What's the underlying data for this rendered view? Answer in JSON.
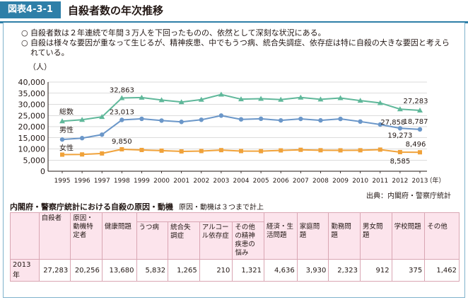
{
  "header": {
    "fig_label": "図表4-3-1",
    "title": "自殺者数の年次推移"
  },
  "notes": [
    {
      "marker": "○",
      "text": "自殺者数は２年連続で年間３万人を下回ったものの、依然として深刻な状況にある。"
    },
    {
      "marker": "○",
      "text": "自殺は様々な要因が重なって生じるが、精神疾患、中でもうつ病、統合失調症、依存症は特に自殺の大きな要因と考えられている。"
    }
  ],
  "chart_data": {
    "type": "line",
    "title": "",
    "ylabel": "（人）",
    "xlabel": "（年）",
    "ylim": [
      0,
      40000
    ],
    "yticks": [
      "0",
      "5,000",
      "10,000",
      "15,000",
      "20,000",
      "25,000",
      "30,000",
      "35,000",
      "40,000"
    ],
    "x": [
      "1995",
      "1996",
      "1997",
      "1998",
      "1999",
      "2000",
      "2001",
      "2002",
      "2003",
      "2004",
      "2005",
      "2006",
      "2007",
      "2008",
      "2009",
      "2010",
      "2011",
      "2012",
      "2013"
    ],
    "grid": true,
    "series": [
      {
        "name": "総数",
        "color": "#5fb89a",
        "marker": "triangle",
        "values": [
          22445,
          23104,
          24391,
          32863,
          33048,
          31957,
          31042,
          32143,
          34427,
          32325,
          32552,
          32155,
          33093,
          32249,
          32845,
          31690,
          30651,
          27858,
          27283
        ]
      },
      {
        "name": "男性",
        "color": "#6b97c9",
        "marker": "circle",
        "values": [
          14231,
          14853,
          16416,
          23013,
          23512,
          22727,
          22144,
          23080,
          24963,
          23272,
          23540,
          22813,
          23478,
          22831,
          23472,
          22283,
          20955,
          19273,
          18787
        ]
      },
      {
        "name": "女性",
        "color": "#f0a23a",
        "marker": "square",
        "values": [
          7445,
          7538,
          7975,
          9850,
          9536,
          9230,
          8898,
          9063,
          9464,
          9053,
          9012,
          9342,
          9615,
          9418,
          9373,
          9407,
          9696,
          8585,
          8496
        ]
      }
    ],
    "annotations": [
      {
        "series": 0,
        "index": 3,
        "text": "32,863"
      },
      {
        "series": 1,
        "index": 3,
        "text": "23,013"
      },
      {
        "series": 2,
        "index": 3,
        "text": "9,850"
      },
      {
        "series": 0,
        "index": 17,
        "text": "27,858"
      },
      {
        "series": 1,
        "index": 17,
        "text": "19,273"
      },
      {
        "series": 2,
        "index": 17,
        "text": "8,585"
      },
      {
        "series": 0,
        "index": 18,
        "text": "27,283"
      },
      {
        "series": 1,
        "index": 18,
        "text": "18,787"
      },
      {
        "series": 2,
        "index": 18,
        "text": "8,496"
      }
    ]
  },
  "source": "出典：内閣府・警察庁統計",
  "table": {
    "title": "内閣府・警察庁統計における自殺の原因・動機",
    "note": "原因・動機は３つまで計上",
    "headers": {
      "suicides": "自殺者",
      "identified": "原因・動機特定者",
      "health": "健康問題",
      "depression": "うつ病",
      "schizophrenia": "統合失調症",
      "alcohol": "アルコール依存症",
      "other_mental": "その他の精神疾患の悩み",
      "economic": "経済・生活問題",
      "family": "家庭問題",
      "work": "勤務問題",
      "relationship": "男女問題",
      "school": "学校問題",
      "other": "その他"
    },
    "row": {
      "year": "2013年",
      "suicides": "27,283",
      "identified": "20,256",
      "health": "13,680",
      "depression": "5,832",
      "schizophrenia": "1,265",
      "alcohol": "210",
      "other_mental": "1,321",
      "economic": "4,636",
      "family": "3,930",
      "work": "2,323",
      "relationship": "912",
      "school": "375",
      "other": "1,462"
    }
  }
}
